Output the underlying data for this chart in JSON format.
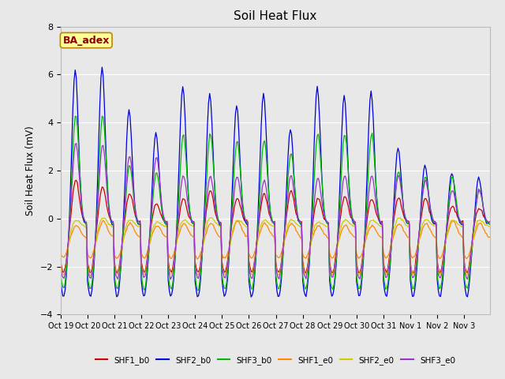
{
  "title": "Soil Heat Flux",
  "ylabel": "Soil Heat Flux (mV)",
  "ylim": [
    -4,
    8
  ],
  "yticks": [
    -4,
    -2,
    0,
    2,
    4,
    6,
    8
  ],
  "background_color": "#e8e8e8",
  "plot_bg_color": "#e8e8e8",
  "annotation_text": "BA_adex",
  "annotation_bg": "#ffff99",
  "annotation_border": "#b8860b",
  "annotation_text_color": "#8b0000",
  "xtick_labels": [
    "Oct 19",
    "Oct 20",
    "Oct 21",
    "Oct 22",
    "Oct 23",
    "Oct 24",
    "Oct 25",
    "Oct 26",
    "Oct 27",
    "Oct 28",
    "Oct 29",
    "Oct 30",
    "Oct 31",
    "Nov 1",
    "Nov 2",
    "Nov 3"
  ],
  "series_colors": [
    "#cc0000",
    "#0000dd",
    "#00bb00",
    "#ff8800",
    "#cccc00",
    "#9933cc"
  ],
  "series_names": [
    "SHF1_b0",
    "SHF2_b0",
    "SHF3_b0",
    "SHF1_e0",
    "SHF2_e0",
    "SHF3_e0"
  ]
}
